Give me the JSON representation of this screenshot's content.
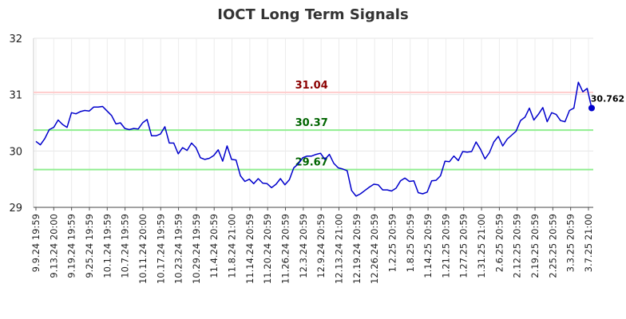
{
  "chart_data": {
    "type": "line",
    "title": "IOCT Long Term Signals",
    "xlabel": "",
    "ylabel": "",
    "ylim": [
      29,
      32
    ],
    "yticks": [
      29,
      30,
      31,
      32
    ],
    "grid": true,
    "x_tick_labels": [
      "9.9.24 19:59",
      "9.13.24 20:00",
      "9.19.24 19:59",
      "9.25.24 19:59",
      "10.1.24 19:59",
      "10.7.24 19:59",
      "10.11.24 20:00",
      "10.17.24 19:59",
      "10.23.24 19:59",
      "10.29.24 19:59",
      "11.4.24 20:59",
      "11.8.24 21:00",
      "11.14.24 20:59",
      "11.20.24 20:59",
      "11.26.24 20:59",
      "12.3.24 20:59",
      "12.9.24 20:59",
      "12.13.24 21:00",
      "12.19.24 20:59",
      "12.26.24 20:59",
      "1.2.25 20:59",
      "1.8.25 20:59",
      "1.14.25 20:59",
      "1.21.25 20:59",
      "1.27.25 20:59",
      "1.31.25 21:00",
      "2.6.25 20:59",
      "2.12.25 20:59",
      "2.19.25 20:59",
      "2.25.25 20:59",
      "3.3.25 20:59",
      "3.7.25 21:00"
    ],
    "series": [
      {
        "color": "#0000cc",
        "values": [
          30.17,
          30.11,
          30.22,
          30.38,
          30.42,
          30.55,
          30.47,
          30.42,
          30.68,
          30.66,
          30.7,
          30.72,
          30.71,
          30.78,
          30.78,
          30.79,
          30.71,
          30.63,
          30.48,
          30.5,
          30.4,
          30.38,
          30.4,
          30.39,
          30.5,
          30.56,
          30.27,
          30.27,
          30.3,
          30.43,
          30.14,
          30.14,
          29.95,
          30.06,
          30.01,
          30.14,
          30.06,
          29.88,
          29.85,
          29.87,
          29.92,
          30.02,
          29.82,
          30.09,
          29.85,
          29.84,
          29.56,
          29.46,
          29.5,
          29.42,
          29.51,
          29.43,
          29.42,
          29.35,
          29.41,
          29.51,
          29.4,
          29.49,
          29.7,
          29.77,
          29.88,
          29.91,
          29.91,
          29.94,
          29.96,
          29.85,
          29.94,
          29.78,
          29.7,
          29.68,
          29.65,
          29.3,
          29.2,
          29.24,
          29.3,
          29.36,
          29.41,
          29.4,
          29.31,
          29.31,
          29.29,
          29.34,
          29.47,
          29.52,
          29.46,
          29.47,
          29.26,
          29.24,
          29.27,
          29.47,
          29.48,
          29.56,
          29.82,
          29.81,
          29.91,
          29.83,
          29.99,
          29.98,
          29.99,
          30.16,
          30.03,
          29.86,
          29.97,
          30.16,
          30.26,
          30.09,
          30.21,
          30.28,
          30.35,
          30.54,
          30.6,
          30.76,
          30.55,
          30.65,
          30.77,
          30.52,
          30.68,
          30.65,
          30.54,
          30.52,
          30.72,
          30.76,
          31.22,
          31.05,
          31.11,
          30.762
        ]
      }
    ],
    "reference_lines": [
      {
        "value": 31.04,
        "label": "31.04",
        "line_color": "#ffcccc",
        "label_color": "#8b0000"
      },
      {
        "value": 30.37,
        "label": "30.37",
        "line_color": "#90ee90",
        "label_color": "#006400"
      },
      {
        "value": 29.67,
        "label": "29.67",
        "line_color": "#90ee90",
        "label_color": "#006400"
      }
    ],
    "last_point": {
      "value": 30.762,
      "label": "30.762"
    }
  }
}
